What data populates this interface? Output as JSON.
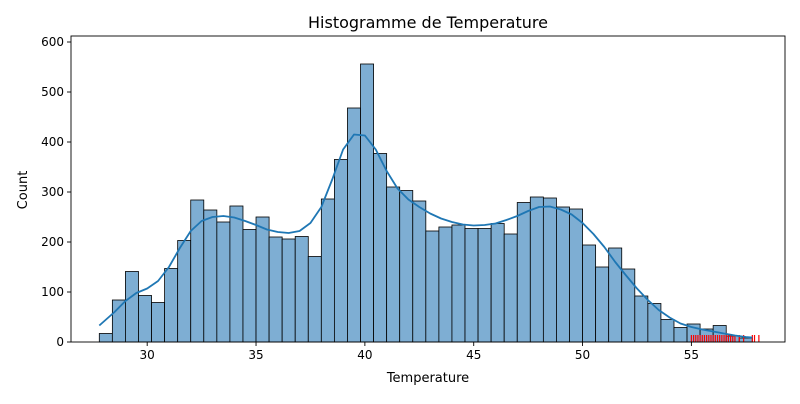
{
  "chart_data": {
    "type": "bar",
    "title": "Histogramme de Temperature",
    "xlabel": "Temperature",
    "ylabel": "Count",
    "xlim": [
      26.5,
      59.3
    ],
    "ylim": [
      0,
      612
    ],
    "xticks": [
      30,
      35,
      40,
      45,
      50,
      55
    ],
    "yticks": [
      0,
      100,
      200,
      300,
      400,
      500,
      600
    ],
    "bin_start": 27.8,
    "bin_width": 0.6,
    "values": [
      17,
      84,
      141,
      93,
      79,
      147,
      203,
      284,
      264,
      240,
      272,
      225,
      250,
      210,
      206,
      211,
      171,
      286,
      365,
      468,
      556,
      377,
      310,
      303,
      282,
      222,
      230,
      234,
      227,
      227,
      237,
      216,
      279,
      290,
      288,
      270,
      266,
      194,
      150,
      188,
      146,
      92,
      77,
      45,
      29,
      36,
      26,
      33,
      12,
      8
    ],
    "kde": {
      "x": [
        27.8,
        28.5,
        29.0,
        29.5,
        30.0,
        30.5,
        31.0,
        31.5,
        32.0,
        32.5,
        33.0,
        33.5,
        34.0,
        34.5,
        35.0,
        35.5,
        36.0,
        36.5,
        37.0,
        37.5,
        38.0,
        38.5,
        39.0,
        39.5,
        40.0,
        40.5,
        41.0,
        41.5,
        42.0,
        42.5,
        43.0,
        43.5,
        44.0,
        44.5,
        45.0,
        45.5,
        46.0,
        46.5,
        47.0,
        47.5,
        48.0,
        48.5,
        49.0,
        49.5,
        50.0,
        50.5,
        51.0,
        51.5,
        52.0,
        52.5,
        53.0,
        53.5,
        54.0,
        54.5,
        55.0,
        55.5,
        56.0,
        56.5,
        57.0,
        57.5,
        57.8
      ],
      "y": [
        33,
        60,
        82,
        98,
        107,
        122,
        150,
        188,
        222,
        242,
        250,
        252,
        249,
        242,
        234,
        225,
        220,
        218,
        222,
        238,
        270,
        325,
        385,
        415,
        413,
        385,
        342,
        307,
        285,
        270,
        257,
        247,
        240,
        235,
        233,
        234,
        237,
        244,
        252,
        262,
        270,
        271,
        265,
        255,
        238,
        216,
        190,
        160,
        133,
        107,
        84,
        64,
        49,
        37,
        30,
        25,
        21,
        17,
        13,
        10,
        9
      ]
    },
    "series": [
      {
        "name": "histogram",
        "color": "#7eaed3",
        "edge_color": "#000000"
      },
      {
        "name": "kde",
        "color": "#1f77b4"
      },
      {
        "name": "markers",
        "color": "#ff0000"
      }
    ],
    "markers": {
      "x": [
        55.0,
        55.1,
        55.2,
        55.3,
        55.4,
        55.5,
        55.6,
        55.7,
        55.8,
        55.9,
        56.0,
        56.1,
        56.2,
        56.3,
        56.4,
        56.5,
        56.6,
        56.7,
        56.8,
        56.9,
        57.0,
        57.2,
        57.4,
        57.8,
        57.9,
        58.1
      ],
      "y_bottom": 0,
      "y_top": 14
    },
    "grid": false,
    "legend": "none"
  }
}
